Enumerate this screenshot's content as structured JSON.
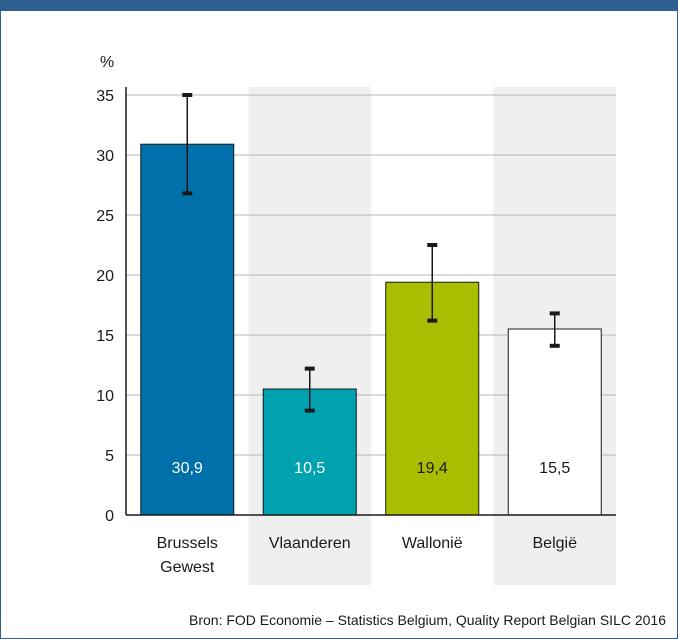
{
  "chart_data": {
    "type": "bar",
    "ylabel": "%",
    "ylim": [
      0,
      35
    ],
    "yticks": [
      "0",
      "5",
      "10",
      "15",
      "20",
      "25",
      "30",
      "35"
    ],
    "grid": true,
    "categories": [
      [
        "Brussels",
        "Gewest"
      ],
      [
        "Vlaanderen"
      ],
      [
        "Wallonië"
      ],
      [
        "België"
      ]
    ],
    "values": [
      30.9,
      10.5,
      19.4,
      15.5
    ],
    "value_labels": [
      "30,9",
      "10,5",
      "19,4",
      "15,5"
    ],
    "error_low": [
      26.8,
      8.7,
      16.2,
      14.1
    ],
    "error_high": [
      35.0,
      12.2,
      22.5,
      16.8
    ],
    "colors": [
      "#0070aa",
      "#00a2b0",
      "#a9be00",
      "#ffffff"
    ],
    "label_colors": [
      "#ffffff",
      "#ffffff",
      "#1a1a1a",
      "#1a1a1a"
    ]
  },
  "source": "Bron: FOD Economie – Statistics Belgium, Quality Report Belgian SILC 2016"
}
